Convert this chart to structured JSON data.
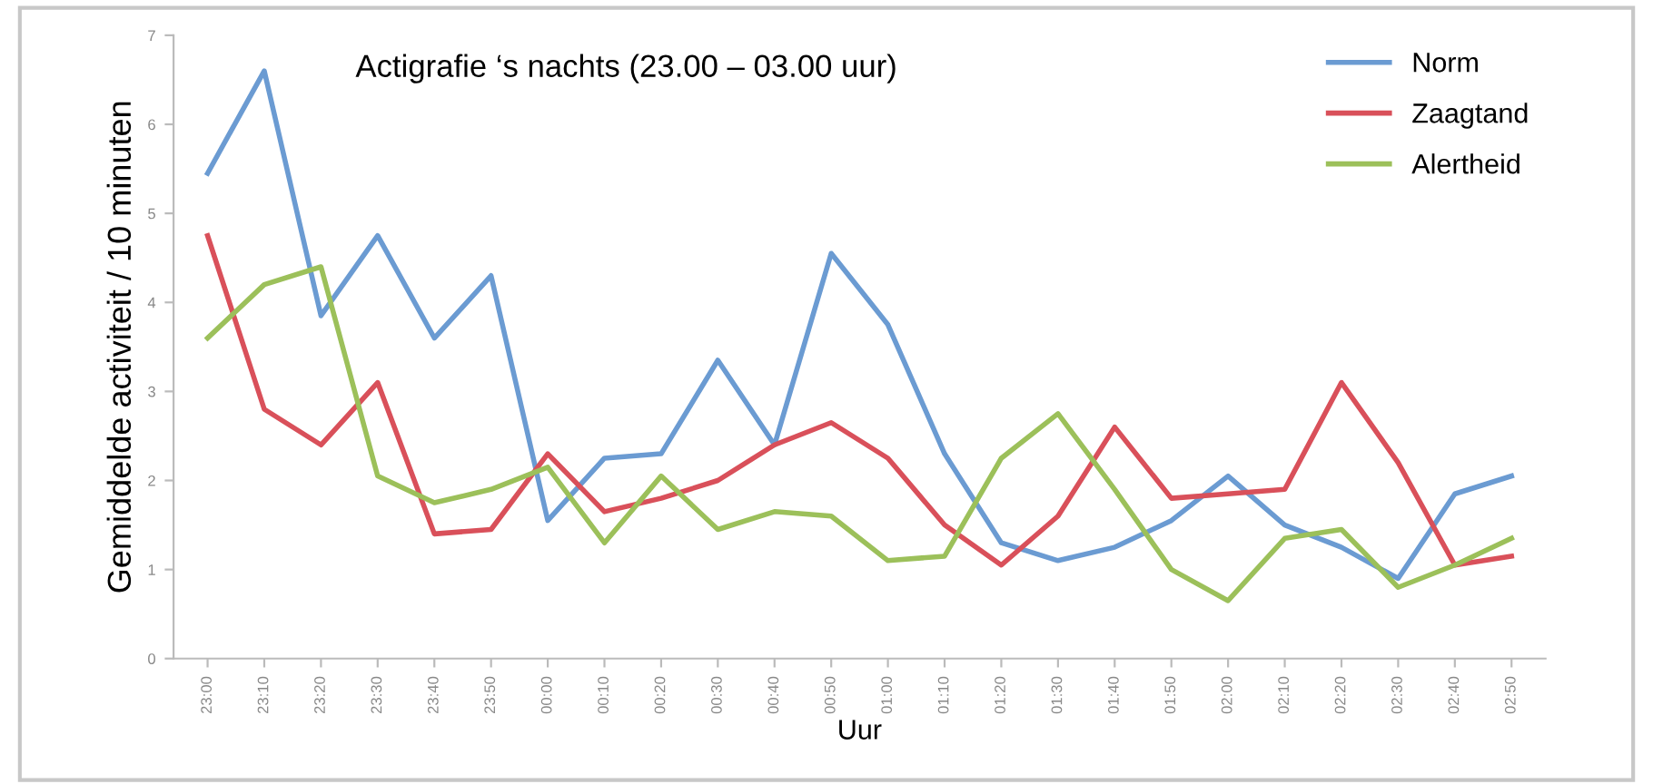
{
  "chart_data": {
    "type": "line",
    "title": "Actigrafie ‘s nachts (23.00 – 03.00 uur)",
    "xlabel": "Uur",
    "ylabel": "Gemiddelde activiteit / 10 minuten",
    "categories": [
      "23:00",
      "23:10",
      "23:20",
      "23:30",
      "23:40",
      "23:50",
      "00:00",
      "00:10",
      "00:20",
      "00:30",
      "00:40",
      "00:50",
      "01:00",
      "01:10",
      "01:20",
      "01:30",
      "01:40",
      "01:50",
      "02:00",
      "02:10",
      "02:20",
      "02:30",
      "02:40",
      "02:50"
    ],
    "series": [
      {
        "name": "Norm",
        "color": "#6b9bd2",
        "values": [
          5.45,
          6.6,
          3.85,
          4.75,
          3.6,
          4.3,
          1.55,
          2.25,
          2.3,
          3.35,
          2.4,
          4.55,
          3.75,
          2.3,
          1.3,
          1.1,
          1.25,
          1.55,
          2.05,
          1.5,
          1.25,
          0.9,
          1.85,
          2.05
        ]
      },
      {
        "name": "Zaagtand",
        "color": "#d9505a",
        "values": [
          4.75,
          2.8,
          2.4,
          3.1,
          1.4,
          1.45,
          2.3,
          1.65,
          1.8,
          2.0,
          2.4,
          2.65,
          2.25,
          1.5,
          1.05,
          1.6,
          2.6,
          1.8,
          1.85,
          1.9,
          3.1,
          2.2,
          1.05,
          1.15
        ]
      },
      {
        "name": "Alertheid",
        "color": "#9cc05a",
        "values": [
          3.6,
          4.2,
          4.4,
          2.05,
          1.75,
          1.9,
          2.15,
          1.3,
          2.05,
          1.45,
          1.65,
          1.6,
          1.1,
          1.15,
          2.25,
          2.75,
          1.9,
          1.0,
          0.65,
          1.35,
          1.45,
          0.8,
          1.05,
          1.35
        ]
      }
    ],
    "ylim": [
      0,
      7
    ],
    "yticks": [
      0,
      1,
      2,
      3,
      4,
      5,
      6,
      7
    ],
    "grid": false,
    "legend": "top right"
  }
}
